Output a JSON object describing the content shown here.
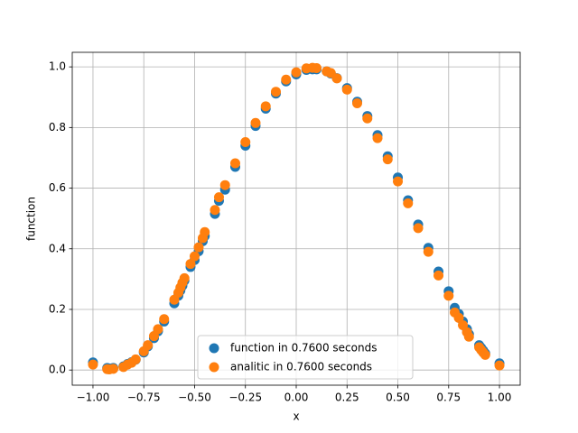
{
  "chart_data": {
    "type": "scatter",
    "xlabel": "x",
    "ylabel": "function",
    "x": [
      -1.0,
      -0.93,
      -0.92,
      -0.9,
      -0.85,
      -0.83,
      -0.81,
      -0.79,
      -0.75,
      -0.73,
      -0.7,
      -0.68,
      -0.65,
      -0.6,
      -0.58,
      -0.57,
      -0.56,
      -0.55,
      -0.52,
      -0.5,
      -0.48,
      -0.46,
      -0.45,
      -0.4,
      -0.38,
      -0.35,
      -0.3,
      -0.25,
      -0.2,
      -0.15,
      -0.1,
      -0.05,
      0.0,
      0.05,
      0.08,
      0.1,
      0.15,
      0.17,
      0.2,
      0.25,
      0.3,
      0.35,
      0.4,
      0.45,
      0.5,
      0.55,
      0.6,
      0.65,
      0.7,
      0.75,
      0.78,
      0.8,
      0.82,
      0.84,
      0.85,
      0.9,
      0.91,
      0.92,
      0.93,
      1.0
    ],
    "series": [
      {
        "name": "function in 0.7600 seconds",
        "color": "#1f77b4",
        "values": [
          0.025,
          0.007,
          0.005,
          0.007,
          0.012,
          0.02,
          0.026,
          0.034,
          0.058,
          0.078,
          0.105,
          0.128,
          0.16,
          0.22,
          0.245,
          0.262,
          0.278,
          0.295,
          0.34,
          0.363,
          0.392,
          0.425,
          0.442,
          0.515,
          0.558,
          0.595,
          0.67,
          0.74,
          0.805,
          0.862,
          0.912,
          0.952,
          0.975,
          0.99,
          0.992,
          0.992,
          0.985,
          0.978,
          0.963,
          0.93,
          0.885,
          0.838,
          0.775,
          0.705,
          0.635,
          0.56,
          0.48,
          0.403,
          0.325,
          0.26,
          0.205,
          0.185,
          0.16,
          0.135,
          0.118,
          0.082,
          0.073,
          0.064,
          0.055,
          0.022
        ]
      },
      {
        "name": "analitic in 0.7600 seconds",
        "color": "#ff7f0e",
        "values": [
          0.018,
          0.003,
          0.002,
          0.004,
          0.01,
          0.018,
          0.024,
          0.035,
          0.062,
          0.082,
          0.112,
          0.135,
          0.168,
          0.232,
          0.255,
          0.272,
          0.288,
          0.303,
          0.35,
          0.375,
          0.405,
          0.435,
          0.455,
          0.528,
          0.57,
          0.61,
          0.682,
          0.752,
          0.815,
          0.87,
          0.918,
          0.958,
          0.982,
          0.995,
          0.997,
          0.996,
          0.985,
          0.98,
          0.962,
          0.925,
          0.88,
          0.83,
          0.765,
          0.695,
          0.622,
          0.55,
          0.468,
          0.39,
          0.312,
          0.245,
          0.19,
          0.172,
          0.148,
          0.125,
          0.11,
          0.075,
          0.066,
          0.058,
          0.05,
          0.015
        ]
      }
    ],
    "xlim": [
      -1.102,
      1.102
    ],
    "ylim": [
      -0.05,
      1.048
    ],
    "xticks": [
      {
        "value": -1.0,
        "label": "−1.00"
      },
      {
        "value": -0.75,
        "label": "−0.75"
      },
      {
        "value": -0.5,
        "label": "−0.50"
      },
      {
        "value": -0.25,
        "label": "−0.25"
      },
      {
        "value": 0,
        "label": "0.00"
      },
      {
        "value": 0.25,
        "label": "0.25"
      },
      {
        "value": 0.5,
        "label": "0.50"
      },
      {
        "value": 0.75,
        "label": "0.75"
      },
      {
        "value": 1.0,
        "label": "1.00"
      }
    ],
    "yticks": [
      {
        "value": 0,
        "label": "0.0"
      },
      {
        "value": 0.2,
        "label": "0.2"
      },
      {
        "value": 0.4,
        "label": "0.4"
      },
      {
        "value": 0.6,
        "label": "0.6"
      },
      {
        "value": 0.8,
        "label": "0.8"
      },
      {
        "value": 1.0,
        "label": "1.0"
      }
    ],
    "grid": true,
    "legend": "lower center"
  }
}
